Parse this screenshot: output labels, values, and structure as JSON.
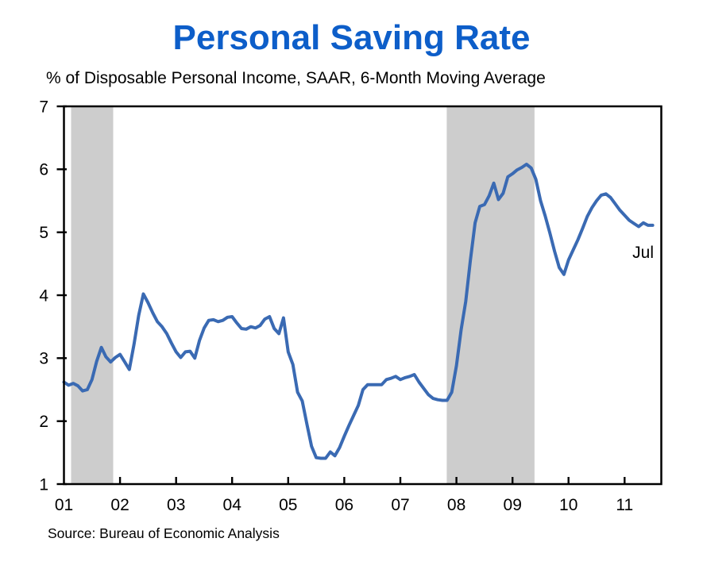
{
  "title": "Personal Saving Rate",
  "subtitle": "% of Disposable Personal Income, SAAR, 6-Month Moving Average",
  "source_note": "Source: Bureau of Economic Analysis",
  "colors": {
    "title": "#0d5ec9",
    "line": "#3a6ab3",
    "recession_band": "#cdcdcd",
    "axis": "#000000",
    "background": "#ffffff"
  },
  "chart_data": {
    "type": "line",
    "title": "Personal Saving Rate",
    "subtitle": "% of Disposable Personal Income, SAAR, 6-Month Moving Average",
    "ylabel": "% of disposable personal income",
    "xlabel": "",
    "ylim": [
      1,
      7
    ],
    "yticks": [
      1,
      2,
      3,
      4,
      5,
      6,
      7
    ],
    "grid": false,
    "legend_position": "none",
    "x_axis": {
      "start": "2001-01",
      "end": "2011-07",
      "frequency": "monthly",
      "tick_labels": [
        "01",
        "02",
        "03",
        "04",
        "05",
        "06",
        "07",
        "08",
        "09",
        "10",
        "11"
      ],
      "tick_month_indices": [
        0,
        12,
        24,
        36,
        48,
        60,
        72,
        84,
        96,
        108,
        120
      ],
      "right_edge_month_index": 127.85
    },
    "annotation": {
      "text": "Jul",
      "month_index": 126,
      "value": 5.11
    },
    "recession_bands": [
      {
        "label": "2001 recession",
        "start": "2001-03",
        "end": "2001-11",
        "start_month_index": 1.53,
        "end_month_index": 10.54
      },
      {
        "label": "2007-09 recession",
        "start": "2007-12",
        "end": "2009-06",
        "start_month_index": 81.93,
        "end_month_index": 100.71
      }
    ],
    "series": [
      {
        "name": "Personal saving rate, 6-month moving average",
        "values": [
          2.62,
          2.57,
          2.6,
          2.56,
          2.48,
          2.5,
          2.66,
          2.95,
          3.17,
          3.02,
          2.94,
          3.01,
          3.06,
          2.94,
          2.82,
          3.22,
          3.68,
          4.02,
          3.88,
          3.72,
          3.58,
          3.5,
          3.39,
          3.24,
          3.1,
          3.01,
          3.1,
          3.11,
          3.0,
          3.28,
          3.48,
          3.6,
          3.61,
          3.58,
          3.6,
          3.65,
          3.66,
          3.56,
          3.47,
          3.46,
          3.5,
          3.48,
          3.52,
          3.62,
          3.66,
          3.47,
          3.39,
          3.64,
          3.1,
          2.9,
          2.46,
          2.32,
          1.95,
          1.6,
          1.42,
          1.41,
          1.41,
          1.51,
          1.45,
          1.58,
          1.76,
          1.93,
          2.09,
          2.25,
          2.5,
          2.58,
          2.58,
          2.58,
          2.58,
          2.66,
          2.68,
          2.71,
          2.66,
          2.69,
          2.71,
          2.74,
          2.62,
          2.52,
          2.42,
          2.36,
          2.34,
          2.33,
          2.33,
          2.46,
          2.88,
          3.45,
          3.9,
          4.56,
          5.15,
          5.41,
          5.44,
          5.58,
          5.78,
          5.52,
          5.62,
          5.88,
          5.93,
          5.99,
          6.03,
          6.08,
          6.02,
          5.84,
          5.5,
          5.26,
          4.99,
          4.7,
          4.44,
          4.33,
          4.56,
          4.72,
          4.88,
          5.06,
          5.25,
          5.39,
          5.5,
          5.59,
          5.61,
          5.55,
          5.45,
          5.35,
          5.27,
          5.19,
          5.14,
          5.09,
          5.15,
          5.11,
          5.11
        ]
      }
    ]
  }
}
